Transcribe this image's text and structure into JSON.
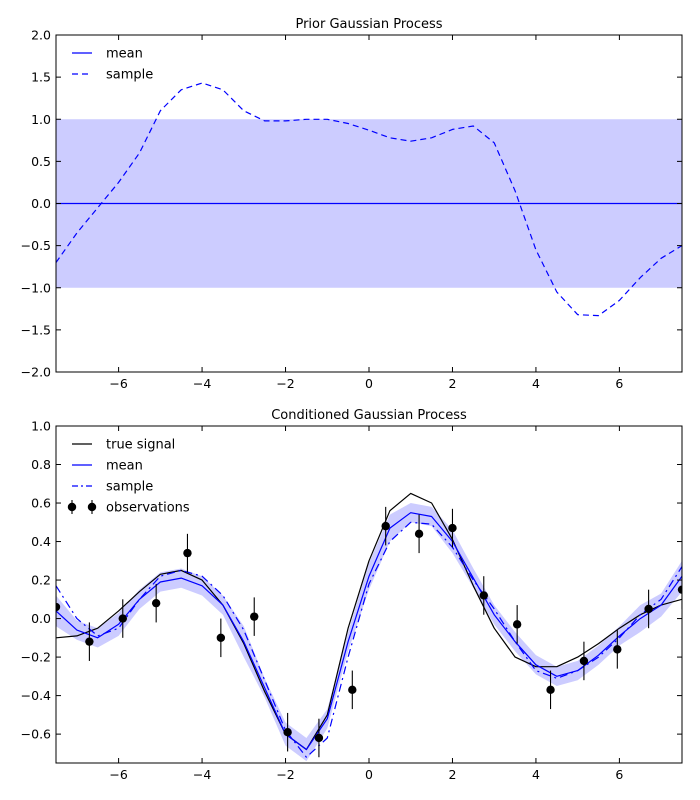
{
  "chart_data": [
    {
      "type": "line",
      "title": "Prior Gaussian Process",
      "xlabel": "",
      "ylabel": "",
      "xlim": [
        -7.5,
        7.5
      ],
      "ylim": [
        -2.0,
        2.0
      ],
      "xticks": [
        -6,
        -4,
        -2,
        0,
        2,
        4,
        6
      ],
      "xtick_labels": [
        "−6",
        "−4",
        "−2",
        "0",
        "2",
        "4",
        "6"
      ],
      "yticks": [
        -2.0,
        -1.5,
        -1.0,
        -0.5,
        0.0,
        0.5,
        1.0,
        1.5,
        2.0
      ],
      "ytick_labels": [
        "−2.0",
        "−1.5",
        "−1.0",
        "−0.5",
        "0.0",
        "0.5",
        "1.0",
        "1.5",
        "2.0"
      ],
      "grid": false,
      "legend_position": "top-left",
      "colors": {
        "mean": "#0000ff",
        "band": "#ccccff",
        "sample": "#0000ff"
      },
      "band": {
        "x": [
          -7.5,
          7.5
        ],
        "lower": [
          -1.0,
          -1.0
        ],
        "upper": [
          1.0,
          1.0
        ]
      },
      "series": [
        {
          "name": "mean",
          "style": "solid",
          "x": [
            -7.5,
            7.5
          ],
          "y": [
            0.0,
            0.0
          ]
        },
        {
          "name": "sample",
          "style": "dashed",
          "x": [
            -7.5,
            -7.0,
            -6.5,
            -6.0,
            -5.5,
            -5.0,
            -4.5,
            -4.0,
            -3.5,
            -3.0,
            -2.5,
            -2.0,
            -1.5,
            -1.0,
            -0.5,
            0.0,
            0.5,
            1.0,
            1.5,
            2.0,
            2.5,
            3.0,
            3.5,
            4.0,
            4.5,
            5.0,
            5.5,
            6.0,
            6.5,
            7.0,
            7.5
          ],
          "y": [
            -0.7,
            -0.35,
            -0.05,
            0.25,
            0.6,
            1.1,
            1.35,
            1.43,
            1.35,
            1.1,
            0.98,
            0.98,
            1.0,
            1.0,
            0.95,
            0.87,
            0.78,
            0.74,
            0.78,
            0.88,
            0.92,
            0.72,
            0.15,
            -0.55,
            -1.05,
            -1.32,
            -1.33,
            -1.15,
            -0.88,
            -0.65,
            -0.5
          ]
        }
      ]
    },
    {
      "type": "line",
      "title": "Conditioned Gaussian Process",
      "xlabel": "",
      "ylabel": "",
      "xlim": [
        -7.5,
        7.5
      ],
      "ylim": [
        -0.75,
        1.0
      ],
      "xticks": [
        -6,
        -4,
        -2,
        0,
        2,
        4,
        6
      ],
      "xtick_labels": [
        "−6",
        "−4",
        "−2",
        "0",
        "2",
        "4",
        "6"
      ],
      "yticks": [
        -0.6,
        -0.4,
        -0.2,
        0.0,
        0.2,
        0.4,
        0.6,
        0.8,
        1.0
      ],
      "ytick_labels": [
        "−0.6",
        "−0.4",
        "−0.2",
        "0.0",
        "0.2",
        "0.4",
        "0.6",
        "0.8",
        "1.0"
      ],
      "grid": false,
      "legend_position": "top-left",
      "colors": {
        "true_signal": "#000000",
        "mean": "#0000ff",
        "band": "#ccccff",
        "sample": "#0000ff",
        "observations": "#000000"
      },
      "band_halfwidth": [
        0.08,
        0.05,
        0.05,
        0.06,
        0.05,
        0.05,
        0.05,
        0.05,
        0.05,
        0.08,
        0.05,
        0.06,
        0.06,
        0.05,
        0.05,
        0.07,
        0.07,
        0.05,
        0.05,
        0.06,
        0.05,
        0.05,
        0.05,
        0.05,
        0.05,
        0.05,
        0.05,
        0.05,
        0.07,
        0.06,
        0.08
      ],
      "series": [
        {
          "name": "true signal",
          "style": "solid",
          "x": [
            -7.5,
            -7.0,
            -6.5,
            -6.0,
            -5.5,
            -5.0,
            -4.5,
            -4.0,
            -3.5,
            -3.0,
            -2.5,
            -2.0,
            -1.5,
            -1.0,
            -0.5,
            0.0,
            0.5,
            1.0,
            1.5,
            2.0,
            2.5,
            3.0,
            3.5,
            4.0,
            4.5,
            5.0,
            5.5,
            6.0,
            6.5,
            7.0,
            7.5
          ],
          "y": [
            -0.1,
            -0.09,
            -0.05,
            0.04,
            0.14,
            0.23,
            0.25,
            0.2,
            0.07,
            -0.13,
            -0.38,
            -0.6,
            -0.68,
            -0.5,
            -0.05,
            0.3,
            0.56,
            0.65,
            0.6,
            0.41,
            0.17,
            -0.05,
            -0.2,
            -0.25,
            -0.25,
            -0.2,
            -0.13,
            -0.05,
            0.02,
            0.07,
            0.1
          ]
        },
        {
          "name": "mean",
          "style": "solid",
          "x": [
            -7.5,
            -7.0,
            -6.5,
            -6.0,
            -5.5,
            -5.0,
            -4.5,
            -4.0,
            -3.5,
            -3.0,
            -2.5,
            -2.0,
            -1.5,
            -1.0,
            -0.5,
            0.0,
            0.5,
            1.0,
            1.5,
            2.0,
            2.5,
            3.0,
            3.5,
            4.0,
            4.5,
            5.0,
            5.5,
            6.0,
            6.5,
            7.0,
            7.5
          ],
          "y": [
            0.04,
            -0.06,
            -0.1,
            -0.03,
            0.1,
            0.19,
            0.21,
            0.17,
            0.07,
            -0.12,
            -0.36,
            -0.6,
            -0.68,
            -0.52,
            -0.12,
            0.22,
            0.47,
            0.55,
            0.53,
            0.4,
            0.21,
            0.02,
            -0.12,
            -0.24,
            -0.3,
            -0.27,
            -0.19,
            -0.09,
            0.0,
            0.07,
            0.22
          ]
        },
        {
          "name": "sample",
          "style": "dash-dot",
          "x": [
            -7.5,
            -7.0,
            -6.5,
            -6.0,
            -5.5,
            -5.0,
            -4.5,
            -4.0,
            -3.5,
            -3.0,
            -2.5,
            -2.0,
            -1.5,
            -1.0,
            -0.5,
            0.0,
            0.5,
            1.0,
            1.5,
            2.0,
            2.5,
            3.0,
            3.5,
            4.0,
            4.5,
            5.0,
            5.5,
            6.0,
            6.5,
            7.0,
            7.5
          ],
          "y": [
            0.17,
            0.0,
            -0.09,
            -0.05,
            0.1,
            0.22,
            0.25,
            0.22,
            0.12,
            -0.06,
            -0.32,
            -0.58,
            -0.72,
            -0.62,
            -0.2,
            0.18,
            0.4,
            0.5,
            0.49,
            0.37,
            0.2,
            0.05,
            -0.12,
            -0.27,
            -0.31,
            -0.27,
            -0.2,
            -0.1,
            0.02,
            0.1,
            0.27
          ]
        },
        {
          "name": "observations",
          "style": "markers-errorbars",
          "x": [
            -7.5,
            -6.7,
            -5.9,
            -5.1,
            -4.35,
            -3.55,
            -2.75,
            -1.95,
            -1.2,
            -0.4,
            0.4,
            1.2,
            2.0,
            2.75,
            3.55,
            4.35,
            5.15,
            5.95,
            6.7,
            7.5
          ],
          "y": [
            0.06,
            -0.12,
            0.0,
            0.08,
            0.34,
            -0.1,
            0.01,
            -0.59,
            -0.62,
            -0.37,
            0.48,
            0.44,
            0.47,
            0.12,
            -0.03,
            -0.37,
            -0.22,
            -0.16,
            0.05,
            0.15
          ],
          "yerr": 0.1
        }
      ]
    }
  ]
}
